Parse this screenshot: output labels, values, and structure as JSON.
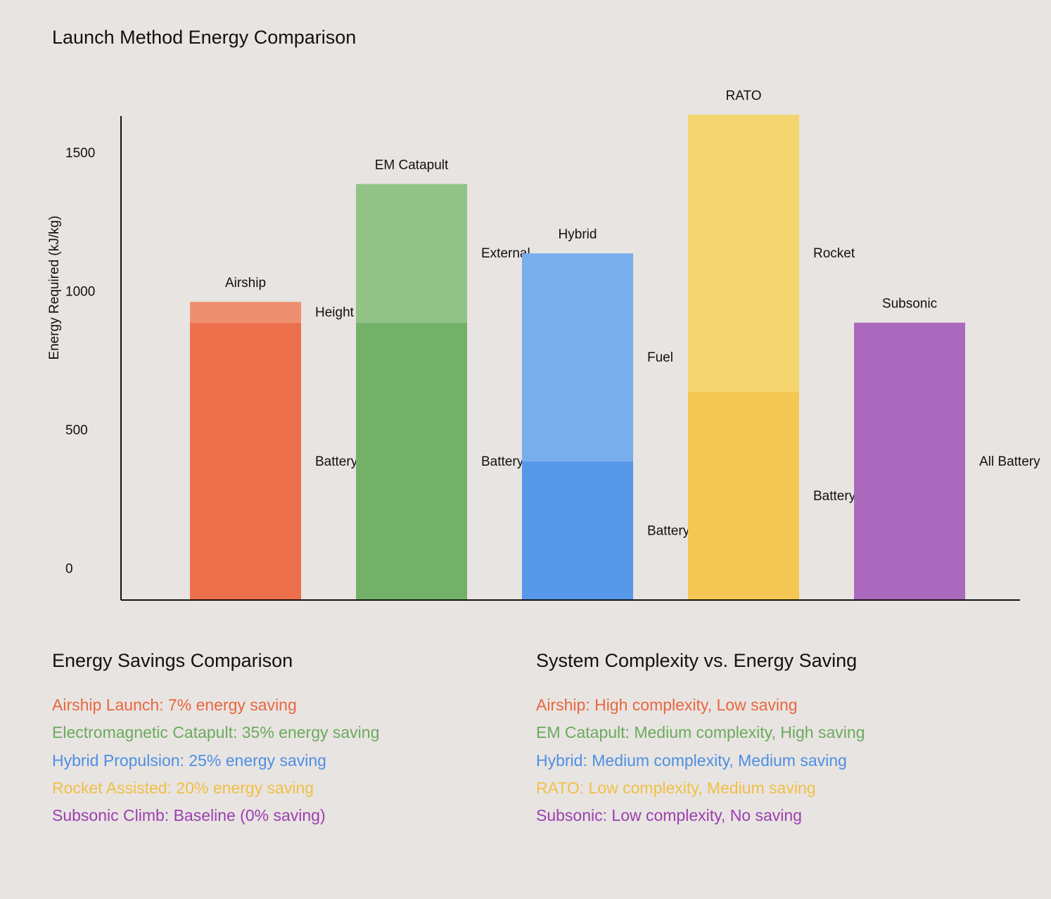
{
  "chart_data": {
    "type": "bar",
    "stacked": true,
    "title": "Launch Method Energy Comparison",
    "xlabel": "",
    "ylabel": "Energy Required (kJ/kg)",
    "ylim": [
      -115,
      1630
    ],
    "yticks": [
      0,
      500,
      1000,
      1500
    ],
    "grid": false,
    "categories": [
      "Airship",
      "EM Catapult",
      "Hybrid",
      "RATO",
      "Subsonic"
    ],
    "bars": [
      {
        "category": "Airship",
        "segments": [
          {
            "name": "Battery",
            "value": 885,
            "color": "#ec704b"
          },
          {
            "name": "Height",
            "value": 75,
            "color": "#ee8f70"
          }
        ]
      },
      {
        "category": "EM Catapult",
        "segments": [
          {
            "name": "Battery",
            "value": 885,
            "color": "#74b168"
          },
          {
            "name": "External",
            "value": 500,
            "color": "#91c387"
          }
        ]
      },
      {
        "category": "Hybrid",
        "segments": [
          {
            "name": "Battery",
            "value": 385,
            "color": "#5799e8"
          },
          {
            "name": "Fuel",
            "value": 750,
            "color": "#79aeed"
          }
        ]
      },
      {
        "category": "RATO",
        "segments": [
          {
            "name": "Battery",
            "value": 635,
            "color": "#f3c752"
          },
          {
            "name": "Rocket",
            "value": 1000,
            "color": "#f4d46f"
          }
        ]
      },
      {
        "category": "Subsonic",
        "segments": [
          {
            "name": "All Battery",
            "value": 885,
            "color": "#aa69bd"
          }
        ]
      }
    ]
  },
  "savings": {
    "title": "Energy Savings Comparison",
    "items": [
      {
        "text": "Airship Launch: 7% energy saving",
        "color": "#e8673f"
      },
      {
        "text": "Electromagnetic Catapult: 35% energy saving",
        "color": "#6aaa5d"
      },
      {
        "text": "Hybrid Propulsion: 25% energy saving",
        "color": "#4d8fe3"
      },
      {
        "text": "Rocket Assisted: 20% energy saving",
        "color": "#f0bf45"
      },
      {
        "text": "Subsonic Climb: Baseline (0% saving)",
        "color": "#9b3fb0"
      }
    ]
  },
  "complexity": {
    "title": "System Complexity vs. Energy Saving",
    "items": [
      {
        "text": "Airship: High complexity, Low saving",
        "color": "#e8673f"
      },
      {
        "text": "EM Catapult: Medium complexity, High saving",
        "color": "#6aaa5d"
      },
      {
        "text": "Hybrid: Medium complexity, Medium saving",
        "color": "#4d8fe3"
      },
      {
        "text": "RATO: Low complexity, Medium saving",
        "color": "#f0bf45"
      },
      {
        "text": "Subsonic: Low complexity, No saving",
        "color": "#9b3fb0"
      }
    ]
  }
}
